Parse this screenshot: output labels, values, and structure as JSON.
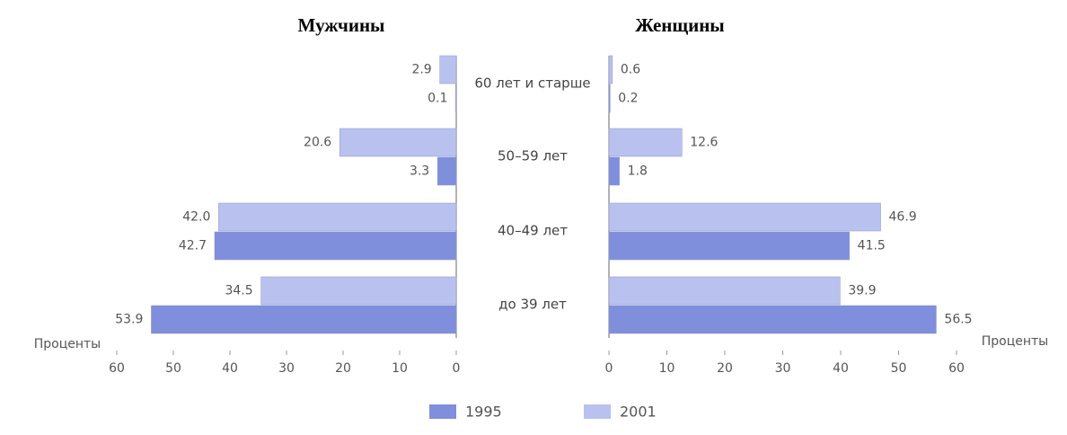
{
  "chart_data": {
    "type": "bar",
    "orientation": "horizontal",
    "categories": [
      "60 лет и старше",
      "50–59 лет",
      "40–49 лет",
      "до 39 лет"
    ],
    "panels": [
      {
        "title": "Мужчины",
        "xlabel": "Проценты",
        "direction": "left",
        "xlim": [
          0,
          60
        ],
        "xticks": [
          0,
          10,
          20,
          30,
          40,
          50,
          60
        ],
        "series": [
          {
            "name": "1995",
            "color": "#7f8fdc",
            "values": [
              0.1,
              3.3,
              42.7,
              53.9
            ],
            "value_labels": [
              "0.1",
              "3.3",
              "42.7",
              "53.9"
            ]
          },
          {
            "name": "2001",
            "color": "#b9c1ef",
            "values": [
              2.9,
              20.6,
              42.0,
              34.5
            ],
            "value_labels": [
              "2.9",
              "20.6",
              "42.0",
              "34.5"
            ]
          }
        ]
      },
      {
        "title": "Женщины",
        "xlabel": "Проценты",
        "direction": "right",
        "xlim": [
          0,
          60
        ],
        "xticks": [
          0,
          10,
          20,
          30,
          40,
          50,
          60
        ],
        "series": [
          {
            "color": "#7f8fdc",
            "values": [
              0.2,
              1.8,
              41.5,
              56.5
            ],
            "value_labels": [
              "0.2",
              "1.8",
              "41.5",
              "56.5"
            ]
          },
          {
            "color": "#b9c1ef",
            "values": [
              0.6,
              12.6,
              46.9,
              39.9
            ],
            "value_labels": [
              "0.6",
              "12.6",
              "46.9",
              "39.9"
            ]
          }
        ]
      }
    ]
  }
}
